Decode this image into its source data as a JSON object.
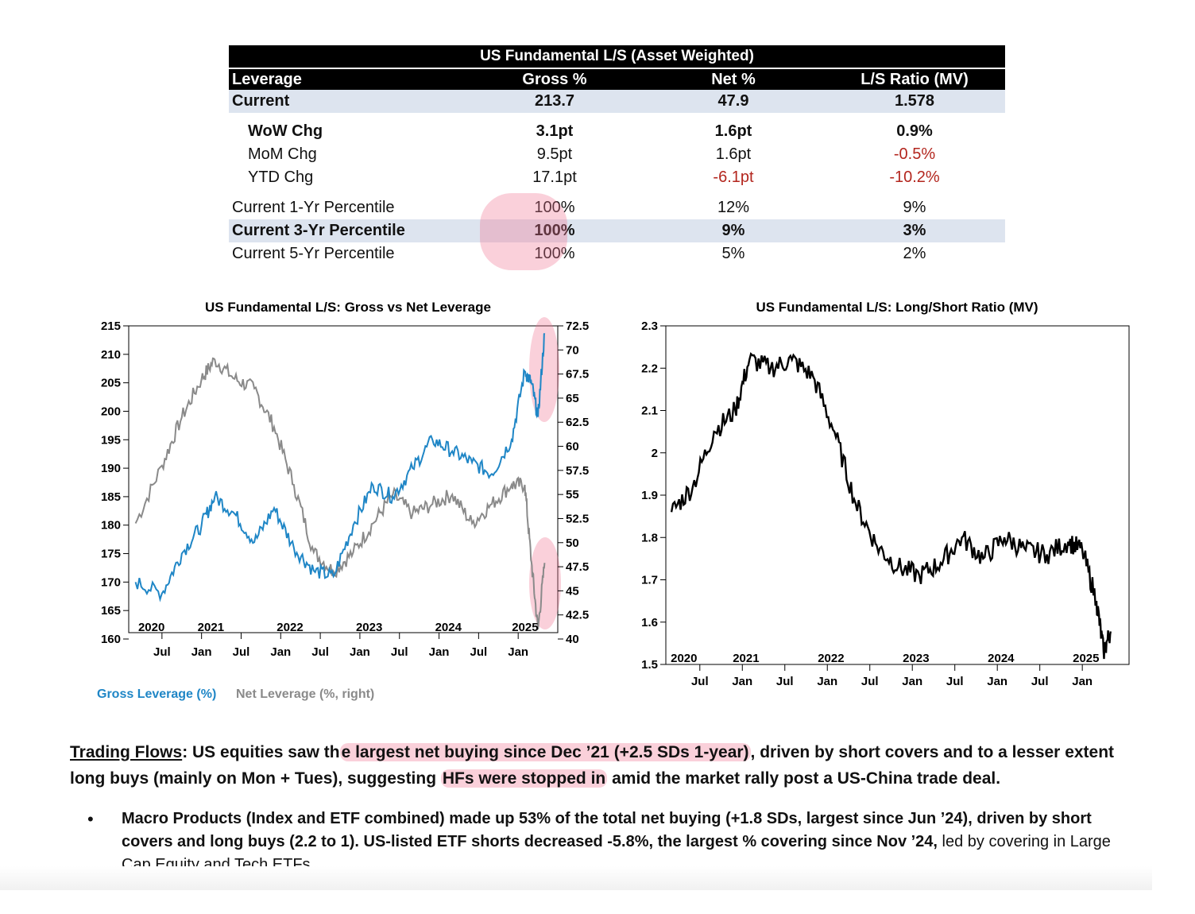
{
  "table": {
    "title": "US Fundamental L/S (Asset Weighted)",
    "headers": [
      "Leverage",
      "Gross %",
      "Net %",
      "L/S Ratio (MV)"
    ],
    "rows": [
      {
        "label": "Current",
        "gross": "213.7",
        "net": "47.9",
        "ratio": "1.578"
      },
      {
        "label": "WoW Chg",
        "gross": "3.1pt",
        "net": "1.6pt",
        "ratio": "0.9%"
      },
      {
        "label": "MoM Chg",
        "gross": "9.5pt",
        "net": "1.6pt",
        "ratio": "-0.5%"
      },
      {
        "label": "YTD Chg",
        "gross": "17.1pt",
        "net": "-6.1pt",
        "ratio": "-10.2%"
      },
      {
        "label": "Current 1-Yr Percentile",
        "gross": "100%",
        "net": "12%",
        "ratio": "9%"
      },
      {
        "label": "Current 3-Yr Percentile",
        "gross": "100%",
        "net": "9%",
        "ratio": "3%"
      },
      {
        "label": "Current 5-Yr Percentile",
        "gross": "100%",
        "net": "5%",
        "ratio": "2%"
      }
    ],
    "negative_color": "#b3261e",
    "highlight_color": "#f078964d"
  },
  "chart_data": [
    {
      "type": "line",
      "title": "US Fundamental L/S: Gross vs Net Leverage",
      "y_left_ticks": [
        "215",
        "210",
        "205",
        "200",
        "195",
        "190",
        "185",
        "180",
        "175",
        "170",
        "165",
        "160"
      ],
      "y_right_ticks": [
        "72.5",
        "70",
        "67.5",
        "65",
        "62.5",
        "60",
        "57.5",
        "55",
        "52.5",
        "50",
        "47.5",
        "45",
        "42.5",
        "40"
      ],
      "ylim_left": [
        160,
        215
      ],
      "ylim_right": [
        40,
        72.5
      ],
      "year_labels": [
        "2020",
        "2021",
        "2022",
        "2023",
        "2024",
        "2025"
      ],
      "month_labels": [
        "Jul",
        "Jan",
        "Jul",
        "Jan",
        "Jul",
        "Jan",
        "Jul",
        "Jan",
        "Jul",
        "Jan"
      ],
      "x": [
        "2020-03",
        "2020-07",
        "2020-10",
        "2021-01",
        "2021-03",
        "2021-06",
        "2021-09",
        "2021-12",
        "2022-03",
        "2022-06",
        "2022-09",
        "2022-12",
        "2023-03",
        "2023-06",
        "2023-09",
        "2023-12",
        "2024-03",
        "2024-06",
        "2024-09",
        "2024-12",
        "2025-02",
        "2025-03",
        "2025-04",
        "2025-05"
      ],
      "series": [
        {
          "name": "Gross Leverage (%)",
          "axis": "left",
          "color": "#1f86c6",
          "values": [
            170,
            168,
            175,
            180,
            185,
            182,
            177,
            183,
            176,
            172,
            171,
            180,
            187,
            185,
            190,
            195,
            193,
            191,
            189,
            195,
            207,
            205,
            199,
            213.7
          ]
        },
        {
          "name": "Net Leverage (%, right)",
          "axis": "right",
          "color": "#8a8a8a",
          "values": [
            52,
            58,
            63,
            67,
            69,
            67,
            66,
            62,
            56,
            49,
            47,
            49,
            52,
            55,
            53,
            54,
            55,
            52,
            54,
            56,
            56,
            48,
            41,
            47.9
          ]
        }
      ]
    },
    {
      "type": "line",
      "title": "US Fundamental L/S: Long/Short Ratio (MV)",
      "y_ticks": [
        "2.3",
        "2.2",
        "2.1",
        "2",
        "1.9",
        "1.8",
        "1.7",
        "1.6",
        "1.5"
      ],
      "ylim": [
        1.5,
        2.3
      ],
      "year_labels": [
        "2020",
        "2021",
        "2022",
        "2023",
        "2024",
        "2025"
      ],
      "month_labels": [
        "Jul",
        "Jan",
        "Jul",
        "Jan",
        "Jul",
        "Jan",
        "Jul",
        "Jan",
        "Jul",
        "Jan"
      ],
      "x": [
        "2020-03",
        "2020-06",
        "2020-09",
        "2020-12",
        "2021-02",
        "2021-05",
        "2021-08",
        "2021-11",
        "2022-02",
        "2022-05",
        "2022-08",
        "2022-11",
        "2023-02",
        "2023-05",
        "2023-08",
        "2023-11",
        "2024-02",
        "2024-05",
        "2024-08",
        "2024-11",
        "2025-01",
        "2025-03",
        "2025-04",
        "2025-05"
      ],
      "series": [
        {
          "name": "",
          "color": "#000000",
          "values": [
            1.86,
            1.92,
            2.05,
            2.1,
            2.22,
            2.2,
            2.22,
            2.18,
            2.05,
            1.88,
            1.78,
            1.73,
            1.71,
            1.74,
            1.8,
            1.75,
            1.8,
            1.77,
            1.76,
            1.79,
            1.77,
            1.65,
            1.53,
            1.578
          ]
        }
      ]
    }
  ],
  "legend": {
    "gross": "Gross Leverage (%)",
    "net": "Net Leverage (%, right)"
  },
  "flows": {
    "heading": "Trading Flows",
    "p1": ": US equities saw th",
    "hl1": "e largest net buying since Dec ’21 (+2.5 SDs 1-year)",
    "p2": ", driven by short covers and to a lesser extent long buys (mainly on Mon + Tues), suggesting ",
    "hl2": "HFs were stopped in",
    "p3": " amid the market rally post a US-China trade deal."
  },
  "bullet": {
    "marker": "•",
    "bold": "Macro Products (Index and ETF combined) made up 53% of the total net buying (+1.8 SDs, largest since Jun ’24), driven by short covers and long buys (2.2 to 1). US-listed ETF shorts decreased -5.8%, the largest % covering since Nov ’24,",
    "rest": " led by covering in Large Cap Equity and Tech ETFs."
  }
}
